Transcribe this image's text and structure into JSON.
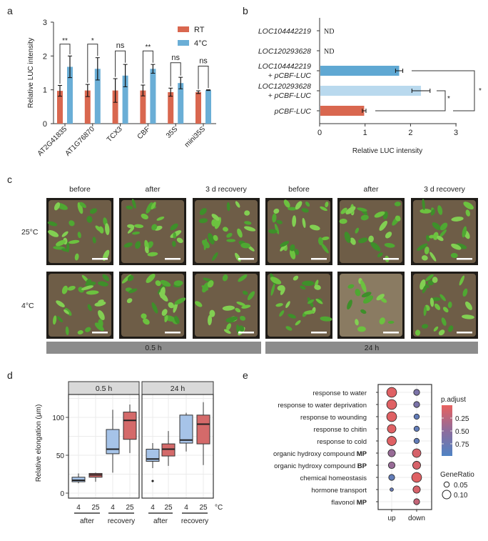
{
  "panel_labels": {
    "a": "a",
    "b": "b",
    "c": "c",
    "d": "d",
    "e": "e"
  },
  "chart_data": [
    {
      "id": "a",
      "type": "bar",
      "ylabel": "Relative LUC intensity",
      "ylim": [
        0,
        3
      ],
      "yticks": [
        "0",
        "1",
        "2",
        "3"
      ],
      "categories": [
        "AT2G41835",
        "AT1G76870",
        "TCX3",
        "CBF",
        "35S",
        "mini35S"
      ],
      "legend": {
        "position": "top-right",
        "entries": [
          "RT",
          "4°C"
        ]
      },
      "colors": {
        "RT": "#d9674f",
        "4°C": "#6aaed6"
      },
      "series": [
        {
          "name": "RT",
          "values": [
            0.97,
            0.98,
            0.98,
            0.98,
            0.93,
            0.93
          ],
          "errors": [
            0.16,
            0.18,
            0.35,
            0.16,
            0.12,
            0.04
          ]
        },
        {
          "name": "4°C",
          "values": [
            1.68,
            1.62,
            1.42,
            1.62,
            1.2,
            0.99
          ],
          "errors": [
            0.32,
            0.33,
            0.33,
            0.13,
            0.17,
            0.01
          ]
        }
      ],
      "significance": [
        "**",
        "*",
        "ns",
        "**",
        "ns",
        "ns"
      ],
      "bracket_heights": [
        2.35,
        2.35,
        2.15,
        2.15,
        1.8,
        1.7
      ]
    },
    {
      "id": "b",
      "type": "bar",
      "orientation": "horizontal",
      "xlabel": "Relative LUC intensity",
      "xlim": [
        0,
        3
      ],
      "xticks": [
        "0",
        "1",
        "2",
        "3"
      ],
      "categories": [
        {
          "lines": [
            "LOC104442219"
          ],
          "value": null,
          "error": null,
          "note": "ND",
          "color": ""
        },
        {
          "lines": [
            "LOC120293628"
          ],
          "value": null,
          "error": null,
          "note": "ND",
          "color": ""
        },
        {
          "lines": [
            "LOC104442219",
            "+ pCBF-LUC"
          ],
          "value": 1.75,
          "error": 0.08,
          "note": "",
          "color": "#5fa8d3"
        },
        {
          "lines": [
            "LOC120293628",
            "+ pCBF-LUC"
          ],
          "value": 2.23,
          "error": 0.2,
          "note": "",
          "color": "#b9d9ee"
        },
        {
          "lines": [
            "pCBF-LUC"
          ],
          "value": 0.98,
          "error": 0.04,
          "note": "",
          "color": "#d9674f"
        }
      ],
      "significance": [
        {
          "pair": "row3-row5",
          "label": "*"
        },
        {
          "pair": "row4-row5",
          "label": "*"
        }
      ]
    },
    {
      "id": "d",
      "type": "box",
      "ylabel": "Relative elongation (μm)",
      "yticks": [
        "0",
        "50",
        "100"
      ],
      "ylim": [
        0,
        135
      ],
      "unit_label": "°C",
      "colors": {
        "4": "#a6c3e8",
        "25": "#d46a6a"
      },
      "facets": [
        {
          "title": "0.5 h",
          "boxes": [
            {
              "temp": "4",
              "group": "after",
              "min": 13,
              "q1": 15,
              "median": 17,
              "q3": 21,
              "max": 26,
              "outliers": []
            },
            {
              "temp": "25",
              "group": "after",
              "min": 15,
              "q1": 21,
              "median": 24,
              "q3": 26,
              "max": 27,
              "outliers": []
            },
            {
              "temp": "4",
              "group": "recovery",
              "min": 27,
              "q1": 52,
              "median": 58,
              "q3": 84,
              "max": 110,
              "outliers": []
            },
            {
              "temp": "25",
              "group": "recovery",
              "min": 53,
              "q1": 71,
              "median": 96,
              "q3": 107,
              "max": 117,
              "outliers": []
            }
          ]
        },
        {
          "title": "24 h",
          "boxes": [
            {
              "temp": "4",
              "group": "after",
              "min": 33,
              "q1": 42,
              "median": 45,
              "q3": 58,
              "max": 66,
              "outliers": [
                16
              ]
            },
            {
              "temp": "25",
              "group": "after",
              "min": 36,
              "q1": 49,
              "median": 58,
              "q3": 65,
              "max": 82,
              "outliers": []
            },
            {
              "temp": "4",
              "group": "recovery",
              "min": 55,
              "q1": 66,
              "median": 70,
              "q3": 103,
              "max": 106,
              "outliers": []
            },
            {
              "temp": "25",
              "group": "recovery",
              "min": 37,
              "q1": 65,
              "median": 91,
              "q3": 103,
              "max": 120,
              "outliers": []
            }
          ]
        }
      ],
      "groups": [
        "after",
        "recovery"
      ]
    },
    {
      "id": "e",
      "type": "scatter",
      "subtype": "dotplot",
      "x": [
        "up",
        "down"
      ],
      "terms": [
        {
          "label": "response to water",
          "bold": ""
        },
        {
          "label": "response to water deprivation",
          "bold": ""
        },
        {
          "label": "response to wounding",
          "bold": ""
        },
        {
          "label": "response to chitin",
          "bold": ""
        },
        {
          "label": "response to cold",
          "bold": ""
        },
        {
          "label": "organic hydroxy compound ",
          "bold": "MP"
        },
        {
          "label": "organic hydroxy compound ",
          "bold": "BP"
        },
        {
          "label": "chemical homeostasis",
          "bold": ""
        },
        {
          "label": "hormone transport",
          "bold": ""
        },
        {
          "label": "flavonol ",
          "bold": "MP"
        }
      ],
      "points": {
        "up": [
          {
            "gene_ratio": 0.12,
            "p_adjust": 0.05
          },
          {
            "gene_ratio": 0.12,
            "p_adjust": 0.05
          },
          {
            "gene_ratio": 0.12,
            "p_adjust": 0.05
          },
          {
            "gene_ratio": 0.1,
            "p_adjust": 0.05
          },
          {
            "gene_ratio": 0.11,
            "p_adjust": 0.05
          },
          {
            "gene_ratio": 0.08,
            "p_adjust": 0.45
          },
          {
            "gene_ratio": 0.07,
            "p_adjust": 0.45
          },
          {
            "gene_ratio": 0.06,
            "p_adjust": 0.85
          },
          {
            "gene_ratio": 0.02,
            "p_adjust": 0.8
          },
          null
        ],
        "down": [
          {
            "gene_ratio": 0.06,
            "p_adjust": 0.65
          },
          {
            "gene_ratio": 0.06,
            "p_adjust": 0.65
          },
          {
            "gene_ratio": 0.05,
            "p_adjust": 0.85
          },
          {
            "gene_ratio": 0.05,
            "p_adjust": 0.85
          },
          {
            "gene_ratio": 0.05,
            "p_adjust": 0.85
          },
          {
            "gene_ratio": 0.1,
            "p_adjust": 0.1
          },
          {
            "gene_ratio": 0.09,
            "p_adjust": 0.1
          },
          {
            "gene_ratio": 0.12,
            "p_adjust": 0.05
          },
          {
            "gene_ratio": 0.08,
            "p_adjust": 0.1
          },
          {
            "gene_ratio": 0.06,
            "p_adjust": 0.2
          }
        ]
      },
      "legend": {
        "color_title": "p.adjust",
        "color_ticks": [
          "0.25",
          "0.50",
          "0.75"
        ],
        "size_title": "GeneRatio",
        "size_ticks": [
          "0.05",
          "0.10"
        ],
        "low_color": "#e8605e",
        "high_color": "#4f83c4"
      }
    }
  ],
  "panel_c": {
    "columns": [
      "before",
      "after",
      "3 d recovery",
      "before",
      "after",
      "3 d recovery"
    ],
    "rows": [
      "25°C",
      "4°C"
    ],
    "durations": [
      "0.5 h",
      "24 h"
    ]
  }
}
